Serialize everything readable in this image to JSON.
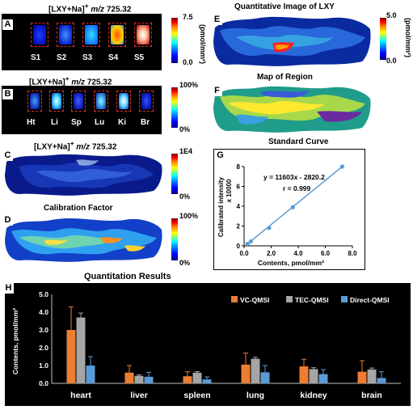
{
  "panelA": {
    "letter": "A",
    "title": "[LXY+Na]",
    "title_sup": "+",
    "title_mz": "m/z",
    "title_val": "725.32",
    "cbar_max": "7.5",
    "cbar_min": "0.0",
    "cbar_unit": "(pmol/mm²)",
    "samples": [
      "S1",
      "S2",
      "S3",
      "S4",
      "S5"
    ]
  },
  "panelB": {
    "letter": "B",
    "title": "[LXY+Na]",
    "title_sup": "+",
    "title_mz": "m/z",
    "title_val": "725.32",
    "cbar_max": "100%",
    "cbar_min": "0%",
    "organs": [
      "Ht",
      "Li",
      "Sp",
      "Lu",
      "Ki",
      "Br"
    ]
  },
  "panelC": {
    "letter": "C",
    "title": "[LXY+Na]",
    "title_sup": "+",
    "title_mz": "m/z",
    "title_val": "725.32",
    "cbar_max": "1E4",
    "cbar_min": "0%"
  },
  "panelD": {
    "letter": "D",
    "title": "Calibration Factor",
    "cbar_max": "100%",
    "cbar_min": "0%"
  },
  "panelE": {
    "letter": "E",
    "title": "Quantitative Image of LXY",
    "cbar_max": "5.0",
    "cbar_min": "0.0",
    "cbar_unit": "(pmol/mm²)"
  },
  "panelF": {
    "letter": "F",
    "title": "Map of Region"
  },
  "panelG": {
    "letter": "G",
    "title": "Standard Curve",
    "equation": "y = 11603x - 2820.2",
    "r_value": "r = 0.999",
    "ylabel": "Calibrated intensity",
    "ylabel2": "x 10000",
    "xlabel": "Contents, pmol/mm²",
    "x_ticks": [
      "0.0",
      "2.0",
      "4.0",
      "6.0",
      "8.0"
    ],
    "y_ticks": [
      "0",
      "2",
      "4",
      "6",
      "8"
    ]
  },
  "panelH": {
    "letter": "H",
    "title": "Quantitation Results",
    "ylabel": "Contents, pmol/mm²",
    "y_ticks": [
      "0.0",
      "1.0",
      "2.0",
      "3.0",
      "4.0",
      "5.0"
    ]
  },
  "colors": {
    "vc": "#ed7d31",
    "tec": "#a5a5a5",
    "direct": "#5b9bd5",
    "line": "#5b9bd5"
  },
  "chart_data": [
    {
      "type": "scatter",
      "title": "Standard Curve",
      "xlabel": "Contents, pmol/mm²",
      "ylabel": "Calibrated intensity x 10000",
      "xlim": [
        0,
        8
      ],
      "ylim": [
        0,
        8
      ],
      "x": [
        0.25,
        0.5,
        1.85,
        3.6,
        7.25
      ],
      "y": [
        0.2,
        0.45,
        1.8,
        3.9,
        8.0
      ],
      "fit": "y = 11603x - 2820.2",
      "r": "r = 0.999"
    },
    {
      "type": "bar",
      "title": "Quantitation Results",
      "ylabel": "Contents, pmol/mm²",
      "ylim": [
        0,
        5
      ],
      "categories": [
        "heart",
        "liver",
        "spleen",
        "lung",
        "kidney",
        "brain"
      ],
      "series": [
        {
          "name": "VC-QMSI",
          "values": [
            3.0,
            0.6,
            0.4,
            1.05,
            0.95,
            0.65
          ],
          "errors": [
            1.3,
            0.4,
            0.25,
            0.65,
            0.4,
            0.62
          ]
        },
        {
          "name": "TEC-QMSI",
          "values": [
            3.7,
            0.42,
            0.6,
            1.38,
            0.8,
            0.78
          ],
          "errors": [
            0.25,
            0.05,
            0.06,
            0.08,
            0.08,
            0.08
          ]
        },
        {
          "name": "Direct-QMSI",
          "values": [
            1.0,
            0.37,
            0.22,
            0.62,
            0.52,
            0.3
          ],
          "errors": [
            0.5,
            0.25,
            0.14,
            0.38,
            0.25,
            0.35
          ]
        }
      ],
      "legend": "top-right"
    }
  ]
}
